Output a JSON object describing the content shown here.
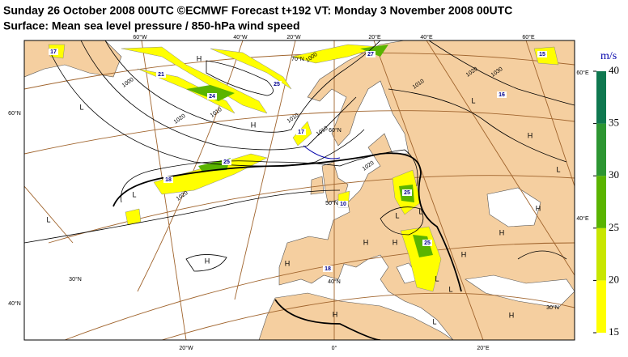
{
  "header": {
    "title": "Sunday 26 October 2008 00UTC ©ECMWF Forecast t+192 VT: Monday 3 November 2008 00UTC",
    "subtitle": "Surface: Mean sea level pressure / 850-hPa wind speed"
  },
  "legend": {
    "unit": "m/s",
    "ticks": [
      15,
      20,
      25,
      30,
      35,
      40
    ],
    "colors": [
      "#ffff00",
      "#c8e600",
      "#5ab400",
      "#2d9632",
      "#0f7850"
    ]
  },
  "map": {
    "grid_labels": [
      "60°W",
      "40°W",
      "20°W",
      "20°E",
      "40°E",
      "60°E",
      "20°W",
      "0°",
      "20°E",
      "60°N",
      "40°N",
      "60°E",
      "40°E",
      "70°N",
      "60°N",
      "50°N",
      "40°N",
      "30°N",
      "30°N"
    ],
    "pressure_centers": [
      "H",
      "L",
      "H",
      "L",
      "L",
      "H",
      "H",
      "H",
      "H",
      "L",
      "H",
      "L",
      "H",
      "H",
      "L",
      "L",
      "H",
      "L",
      "H",
      "H",
      "L",
      "L"
    ],
    "isobar_labels": [
      "1000",
      "1010",
      "1020",
      "1020",
      "1000",
      "1010",
      "1010",
      "1010",
      "1020",
      "1030",
      "1020"
    ],
    "wind_labels": [
      "27",
      "21",
      "24",
      "25",
      "17",
      "25",
      "18",
      "25",
      "10",
      "18",
      "25",
      "16",
      "15",
      "17"
    ]
  }
}
